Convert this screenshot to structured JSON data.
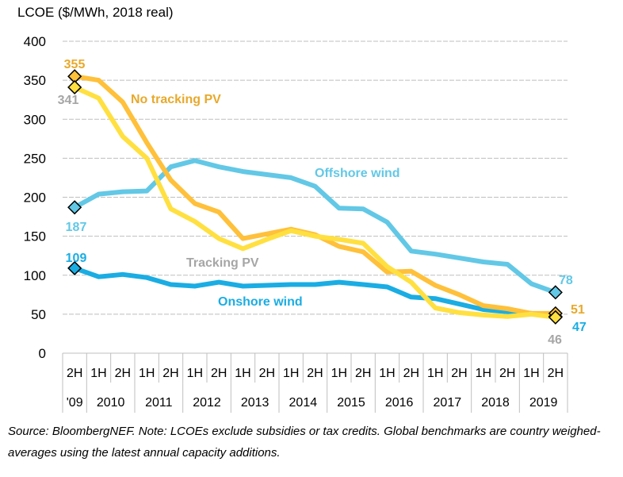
{
  "chart_data": {
    "type": "line",
    "title": "LCOE ($/MWh, 2018 real)",
    "xlabel": "",
    "ylabel": "LCOE ($/MWh, 2018 real)",
    "ylim": [
      0,
      400
    ],
    "yticks": [
      0,
      50,
      100,
      150,
      200,
      250,
      300,
      350,
      400
    ],
    "grid": true,
    "x": [
      "2H '09",
      "1H 2010",
      "2H 2010",
      "1H 2011",
      "2H 2011",
      "1H 2012",
      "2H 2012",
      "1H 2013",
      "2H 2013",
      "1H 2014",
      "2H 2014",
      "1H 2015",
      "2H 2015",
      "1H 2016",
      "2H 2016",
      "1H 2017",
      "2H 2017",
      "1H 2018",
      "2H 2018",
      "1H 2019",
      "2H 2019"
    ],
    "half_labels": [
      "2H",
      "1H",
      "2H",
      "1H",
      "2H",
      "1H",
      "2H",
      "1H",
      "2H",
      "1H",
      "2H",
      "1H",
      "2H",
      "1H",
      "2H",
      "1H",
      "2H",
      "1H",
      "2H",
      "1H",
      "2H"
    ],
    "year_groups": [
      {
        "label": "'09",
        "span": 1
      },
      {
        "label": "2010",
        "span": 2
      },
      {
        "label": "2011",
        "span": 2
      },
      {
        "label": "2012",
        "span": 2
      },
      {
        "label": "2013",
        "span": 2
      },
      {
        "label": "2014",
        "span": 2
      },
      {
        "label": "2015",
        "span": 2
      },
      {
        "label": "2016",
        "span": 2
      },
      {
        "label": "2017",
        "span": 2
      },
      {
        "label": "2018",
        "span": 2
      },
      {
        "label": "2019",
        "span": 2
      }
    ],
    "series": [
      {
        "name": "Offshore wind",
        "color": "#62C8E6",
        "label_color": "#62C8E6",
        "values": [
          187,
          204,
          207,
          208,
          239,
          247,
          239,
          233,
          229,
          225,
          214,
          186,
          185,
          168,
          131,
          127,
          122,
          117,
          114,
          89,
          78
        ],
        "start_label": "187",
        "end_label": "78"
      },
      {
        "name": "Onshore wind",
        "color": "#1AADE3",
        "label_color": "#1AADE3",
        "values": [
          109,
          98,
          101,
          97,
          88,
          86,
          91,
          86,
          87,
          88,
          88,
          91,
          88,
          85,
          72,
          70,
          63,
          56,
          53,
          51,
          47
        ],
        "start_label": "109",
        "end_label": "47"
      },
      {
        "name": "No tracking PV",
        "color": "#FFC03A",
        "label_color": "#E8A92B",
        "values": [
          355,
          350,
          322,
          270,
          222,
          192,
          181,
          147,
          153,
          159,
          152,
          137,
          130,
          104,
          105,
          87,
          75,
          61,
          57,
          51,
          51
        ],
        "start_label": "355",
        "end_label": "51"
      },
      {
        "name": "Tracking PV",
        "color": "#FFE040",
        "label_color": "#A6A6A6",
        "values": [
          341,
          327,
          278,
          250,
          185,
          169,
          147,
          134,
          146,
          157,
          150,
          146,
          141,
          111,
          91,
          58,
          52,
          49,
          47,
          50,
          46
        ],
        "start_label": "341",
        "end_label": "46"
      }
    ],
    "annotations": [
      {
        "text": "No tracking PV",
        "series": "No tracking PV"
      },
      {
        "text": "Offshore  wind",
        "series": "Offshore wind"
      },
      {
        "text": "Tracking PV",
        "series": "Tracking PV"
      },
      {
        "text": "Onshore  wind",
        "series": "Onshore wind"
      }
    ]
  },
  "source": "Source: BloombergNEF. Note: LCOEs exclude subsidies or tax credits. Global benchmarks are country weighed-averages using the latest annual capacity additions."
}
